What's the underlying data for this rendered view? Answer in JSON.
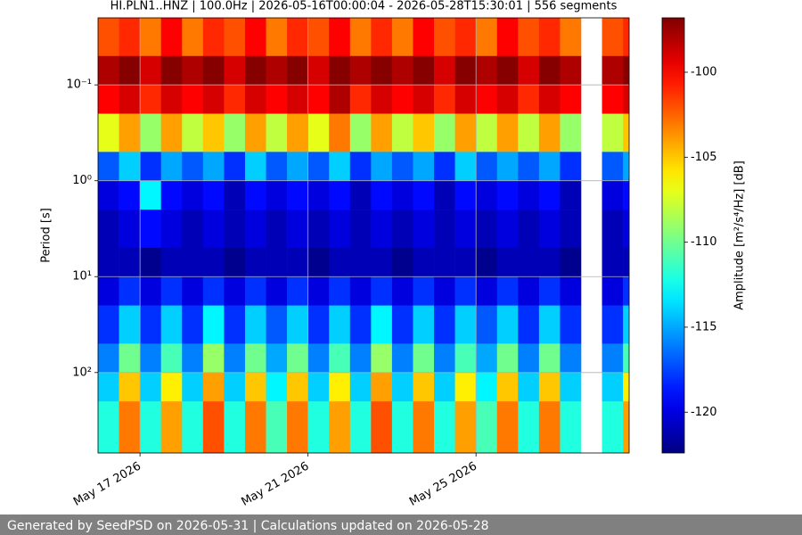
{
  "chart_data": {
    "type": "heatmap",
    "title": "HI.PLN1..HNZ | 100.0Hz | 2026-05-16T00:00:04 - 2026-05-28T15:30:01 | 556 segments",
    "y_label": "Period [s]",
    "colorbar_label": "Amplitude [m²/s⁴/Hz] [dB]",
    "footer": "Generated by SeedPSD on 2026-05-31 | Calculations updated on 2026-05-28",
    "colormap": "jet",
    "grid": true,
    "y_log": true,
    "y_inverted": true,
    "xlim": [
      "2026-05-16T00:00:04",
      "2026-05-28T15:30:01"
    ],
    "xticks": [
      {
        "value": "2026-05-17T00:00:00",
        "label": "May 17 2026"
      },
      {
        "value": "2026-05-21T00:00:00",
        "label": "May 21 2026"
      },
      {
        "value": "2026-05-25T00:00:00",
        "label": "May 25 2026"
      }
    ],
    "ylim": [
      0.02,
      690
    ],
    "yticks": [
      {
        "value": 0.1,
        "label": "10⁻¹"
      },
      {
        "value": 1,
        "label": "10⁰"
      },
      {
        "value": 10,
        "label": "10¹"
      },
      {
        "value": 100,
        "label": "10²"
      }
    ],
    "clim": [
      -122.4,
      -96.8
    ],
    "cticks": [
      -100,
      -105,
      -110,
      -115,
      -120
    ],
    "x": [
      "2026-05-16T00:00:04",
      "2026-05-16T12:00:00",
      "2026-05-17T00:00:00",
      "2026-05-17T12:00:00",
      "2026-05-18T00:00:00",
      "2026-05-18T12:00:00",
      "2026-05-19T00:00:00",
      "2026-05-19T12:00:00",
      "2026-05-20T00:00:00",
      "2026-05-20T12:00:00",
      "2026-05-21T00:00:00",
      "2026-05-21T12:00:00",
      "2026-05-22T00:00:00",
      "2026-05-22T12:00:00",
      "2026-05-23T00:00:00",
      "2026-05-23T12:00:00",
      "2026-05-24T00:00:00",
      "2026-05-24T12:00:00",
      "2026-05-25T00:00:00",
      "2026-05-25T12:00:00",
      "2026-05-26T00:00:00",
      "2026-05-26T12:00:00",
      "2026-05-27T00:00:00",
      "2026-05-27T12:00:00",
      "2026-05-28T00:00:00",
      "2026-05-28T12:00:00"
    ],
    "y_edges": [
      0.02,
      0.05,
      0.1,
      0.2,
      0.5,
      1,
      2,
      5,
      10,
      20,
      50,
      100,
      200,
      690
    ],
    "z": [
      [
        -102,
        -101,
        -103,
        -100,
        -103,
        -101,
        -102,
        -100,
        -103,
        -101,
        -102,
        -100,
        -103,
        -101,
        -103,
        -100,
        -102,
        -101,
        -103,
        -100,
        -102,
        -101,
        -103,
        null,
        -102,
        -101
      ],
      [
        -98,
        -97,
        -99,
        -97,
        -98,
        -97,
        -99,
        -97,
        -98,
        -97,
        -99,
        -97,
        -98,
        -97,
        -98,
        -97,
        -99,
        -97,
        -98,
        -97,
        -99,
        -97,
        -98,
        null,
        -98,
        -97
      ],
      [
        -100,
        -99,
        -101,
        -99,
        -100,
        -99,
        -101,
        -99,
        -100,
        -99,
        -100,
        -98,
        -101,
        -99,
        -100,
        -99,
        -101,
        -99,
        -100,
        -99,
        -101,
        -99,
        -100,
        null,
        -100,
        -99
      ],
      [
        -107,
        -104,
        -109,
        -104,
        -108,
        -105,
        -109,
        -104,
        -108,
        -104,
        -107,
        -103,
        -109,
        -104,
        -108,
        -105,
        -109,
        -104,
        -108,
        -104,
        -108,
        -104,
        -109,
        null,
        -108,
        -105
      ],
      [
        -117,
        -114,
        -118,
        -115,
        -117,
        -115,
        -118,
        -114,
        -117,
        -115,
        -117,
        -114,
        -118,
        -115,
        -117,
        -115,
        -118,
        -114,
        -117,
        -115,
        -117,
        -115,
        -118,
        null,
        -117,
        -115
      ],
      [
        -120,
        -119,
        -113,
        -119,
        -120,
        -119,
        -121,
        -119,
        -120,
        -119,
        -120,
        -119,
        -121,
        -119,
        -120,
        -119,
        -121,
        -119,
        -120,
        -119,
        -120,
        -119,
        -121,
        null,
        -120,
        -119
      ],
      [
        -121,
        -120,
        -119,
        -120,
        -121,
        -120,
        -121,
        -120,
        -121,
        -120,
        -121,
        -120,
        -121,
        -120,
        -121,
        -120,
        -121,
        -120,
        -121,
        -120,
        -121,
        -120,
        -121,
        null,
        -121,
        -120
      ],
      [
        -121,
        -121,
        -122,
        -121,
        -121,
        -121,
        -122,
        -121,
        -121,
        -121,
        -122,
        -121,
        -121,
        -121,
        -122,
        -121,
        -121,
        -121,
        -122,
        -121,
        -121,
        -121,
        -122,
        null,
        -121,
        -121
      ],
      [
        -120,
        -118,
        -120,
        -118,
        -120,
        -118,
        -120,
        -118,
        -120,
        -118,
        -120,
        -118,
        -120,
        -118,
        -120,
        -118,
        -120,
        -118,
        -120,
        -118,
        -120,
        -118,
        -120,
        null,
        -120,
        -118
      ],
      [
        -118,
        -114,
        -118,
        -114,
        -118,
        -113,
        -118,
        -114,
        -117,
        -114,
        -118,
        -114,
        -118,
        -113,
        -118,
        -114,
        -118,
        -114,
        -117,
        -114,
        -118,
        -114,
        -118,
        null,
        -118,
        -114
      ],
      [
        -116,
        -110,
        -116,
        -111,
        -116,
        -109,
        -116,
        -110,
        -115,
        -110,
        -116,
        -111,
        -116,
        -109,
        -116,
        -110,
        -116,
        -111,
        -115,
        -110,
        -116,
        -110,
        -116,
        null,
        -116,
        -111
      ],
      [
        -114,
        -105,
        -114,
        -106,
        -114,
        -104,
        -114,
        -105,
        -113,
        -105,
        -114,
        -106,
        -114,
        -104,
        -114,
        -105,
        -114,
        -106,
        -113,
        -105,
        -114,
        -105,
        -114,
        null,
        -114,
        -106
      ],
      [
        -112,
        -103,
        -112,
        -104,
        -112,
        -102,
        -112,
        -103,
        -111,
        -103,
        -112,
        -104,
        -112,
        -102,
        -112,
        -103,
        -112,
        -104,
        -111,
        -103,
        -112,
        -103,
        -112,
        null,
        -112,
        -104
      ]
    ]
  }
}
